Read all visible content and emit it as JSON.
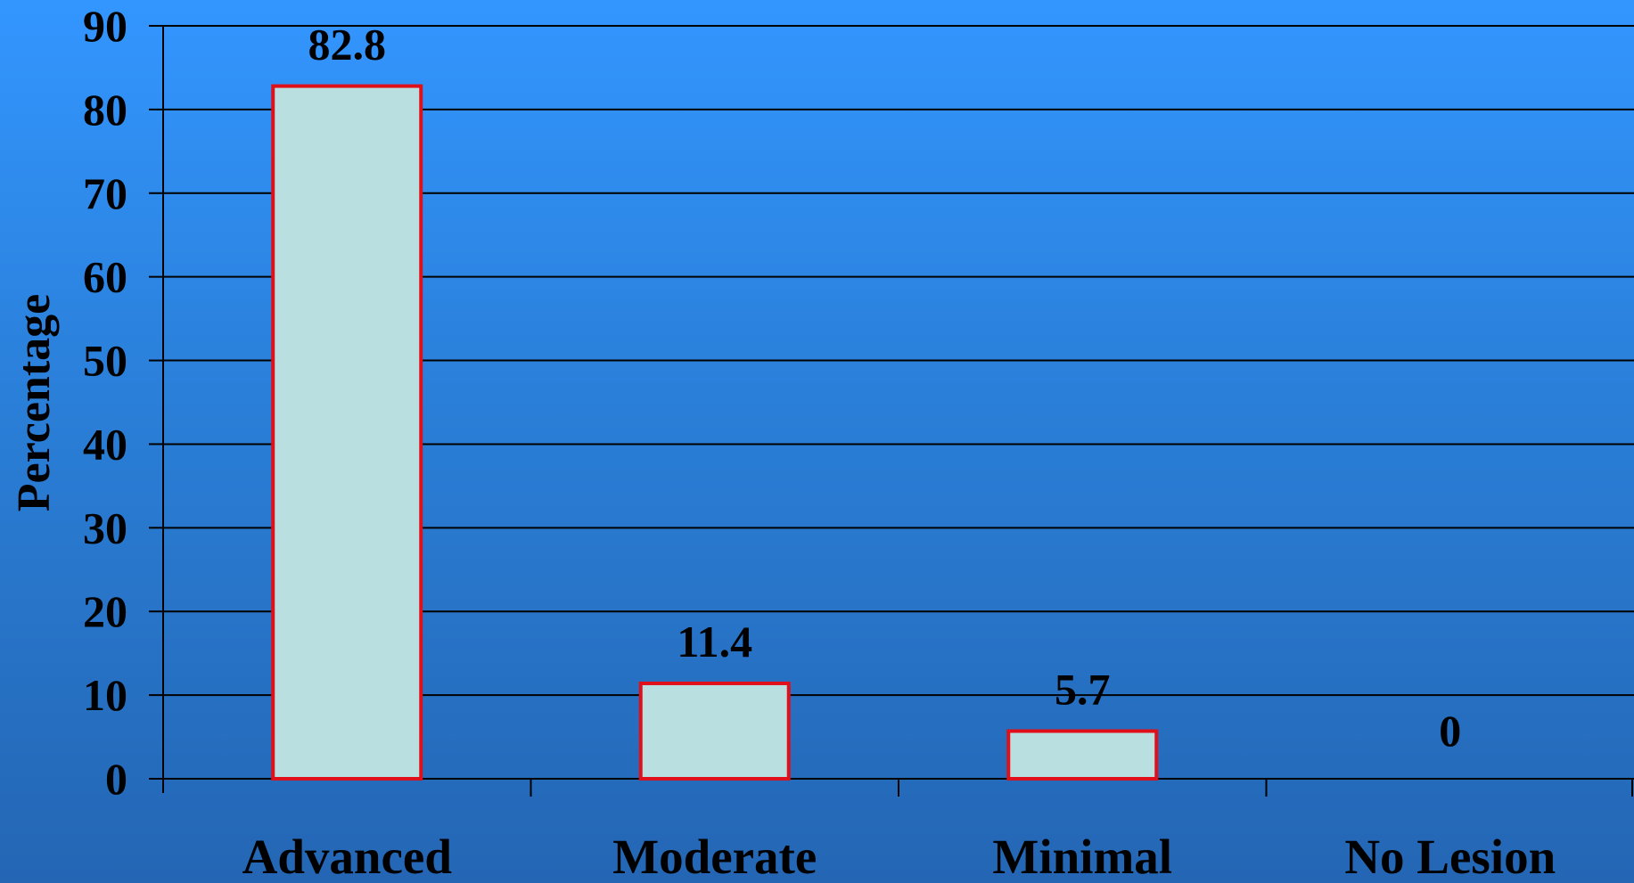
{
  "chart_data": {
    "type": "bar",
    "categories": [
      "Advanced",
      "Moderate",
      "Minimal",
      "No Lesion"
    ],
    "values": [
      82.8,
      11.4,
      5.7,
      0
    ],
    "value_labels": [
      "82.8",
      "11.4",
      "5.7",
      "0"
    ],
    "xlabel": "",
    "ylabel": "Percentage",
    "ylim": [
      0,
      90
    ],
    "yticks": [
      0,
      10,
      20,
      30,
      40,
      50,
      60,
      70,
      80,
      90
    ],
    "grid": true,
    "legend": "none",
    "colors": {
      "bar_fill": "#b9dfe0",
      "bar_stroke": "#e0101a",
      "grid": "#000000",
      "background_top": "#3396ff",
      "background_bottom": "#2466b4"
    }
  }
}
